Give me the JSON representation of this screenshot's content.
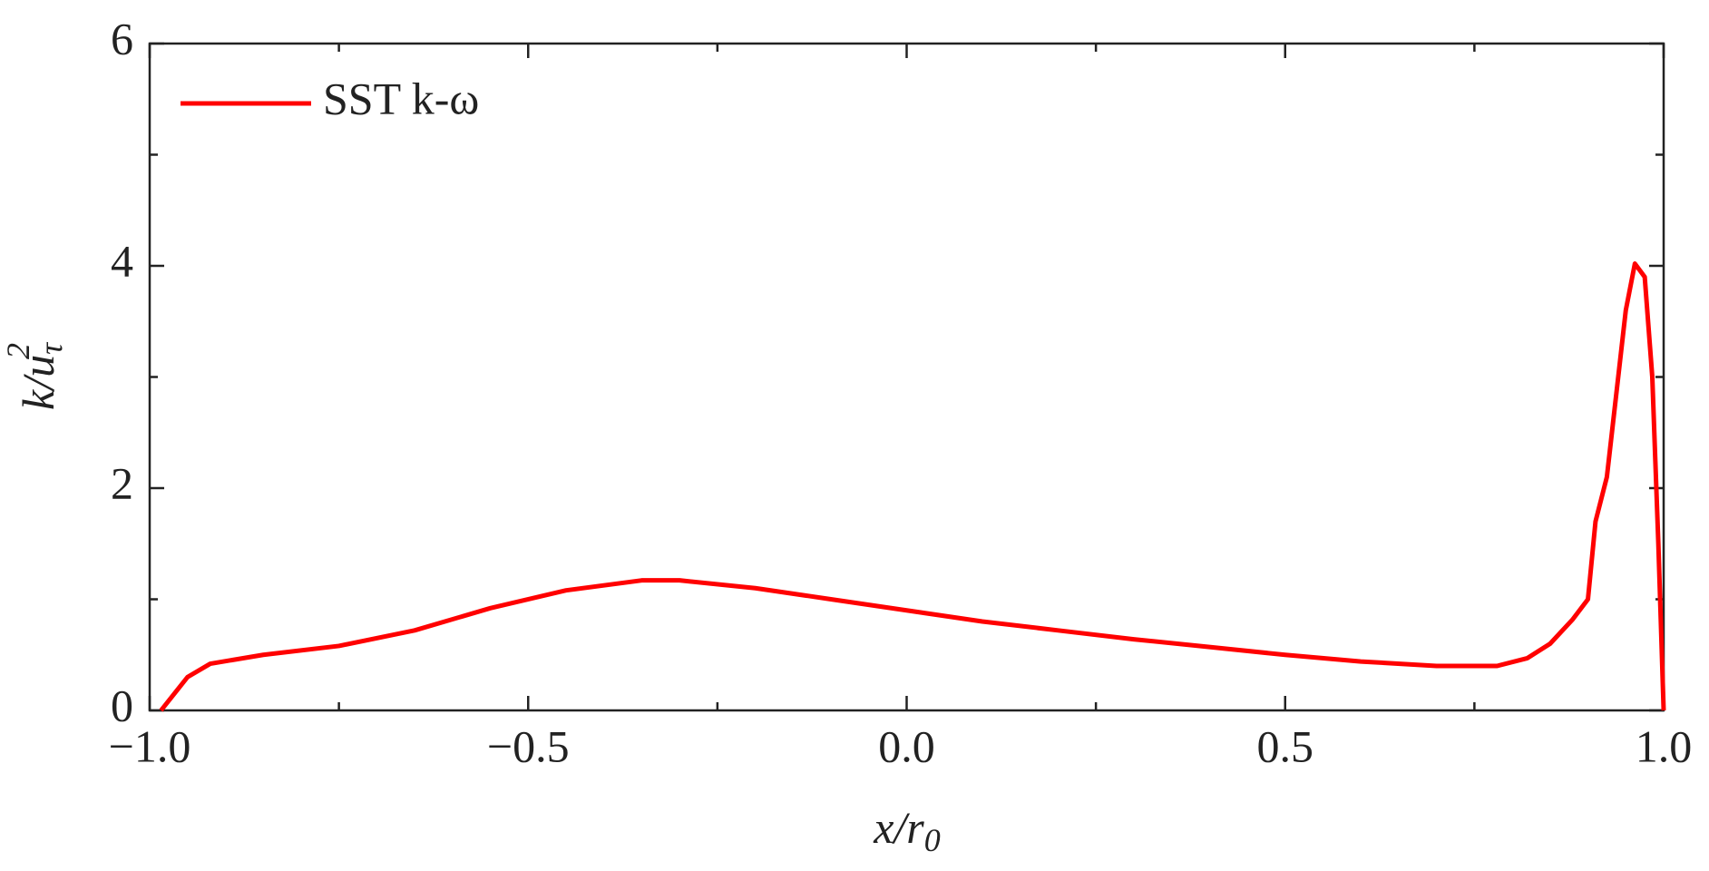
{
  "chart_data": {
    "type": "line",
    "xlabel": {
      "base": "x/r",
      "sub": "0"
    },
    "ylabel": {
      "base": "k/u",
      "sub": "τ",
      "sup": "2"
    },
    "xlim": [
      -1.0,
      1.0
    ],
    "ylim": [
      0,
      6
    ],
    "xticks": [
      {
        "value": -1.0,
        "label": "−1.0"
      },
      {
        "value": -0.5,
        "label": "−0.5"
      },
      {
        "value": 0,
        "label": "0.0"
      },
      {
        "value": 0.5,
        "label": "0.5"
      },
      {
        "value": 1.0,
        "label": "1.0"
      }
    ],
    "yticks": [
      0,
      2,
      4,
      6
    ],
    "xminorticks": [
      -0.75,
      -0.25,
      0.25,
      0.75
    ],
    "yminorticks": [
      1,
      3,
      5
    ],
    "legend_position": "upper left",
    "series": [
      {
        "name": "SST k-ω",
        "color": "#ff0000",
        "x": [
          -0.985,
          -0.95,
          -0.92,
          -0.85,
          -0.75,
          -0.65,
          -0.55,
          -0.45,
          -0.35,
          -0.3,
          -0.2,
          -0.1,
          0.0,
          0.1,
          0.2,
          0.3,
          0.4,
          0.5,
          0.6,
          0.7,
          0.78,
          0.82,
          0.85,
          0.88,
          0.9,
          0.91,
          0.925,
          0.94,
          0.95,
          0.962,
          0.975,
          0.985,
          0.993,
          1.0
        ],
        "values": [
          0,
          0.3,
          0.42,
          0.5,
          0.58,
          0.72,
          0.92,
          1.08,
          1.17,
          1.17,
          1.1,
          1.0,
          0.9,
          0.8,
          0.72,
          0.64,
          0.57,
          0.5,
          0.44,
          0.4,
          0.4,
          0.47,
          0.6,
          0.82,
          1.0,
          1.7,
          2.1,
          3.0,
          3.6,
          4.02,
          3.9,
          3.0,
          1.5,
          0
        ]
      }
    ]
  }
}
